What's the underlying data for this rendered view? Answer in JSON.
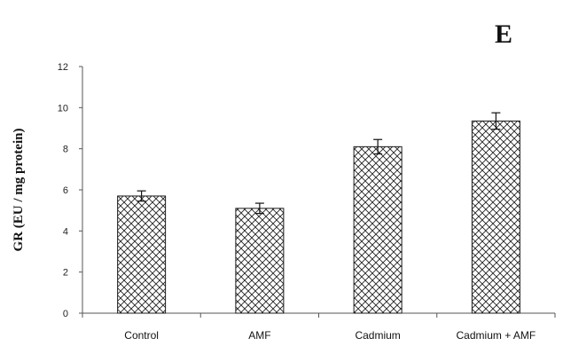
{
  "panel_label": "E",
  "chart_data": {
    "type": "bar",
    "categories": [
      "Control",
      "AMF",
      "Cadmium",
      "Cadmium + AMF"
    ],
    "values": [
      5.7,
      5.1,
      8.1,
      9.35
    ],
    "errors": [
      0.25,
      0.25,
      0.35,
      0.4
    ],
    "title": "",
    "xlabel": "",
    "ylabel": "GR (EU / mg  protein)",
    "ylim": [
      0,
      12
    ],
    "yticks": [
      0,
      2,
      4,
      6,
      8,
      10,
      12
    ],
    "grid": false,
    "legend": "none",
    "bar_fill": "crosshatch",
    "bar_color": "#ffffff",
    "bar_edge_color": "#1a1a1a"
  }
}
